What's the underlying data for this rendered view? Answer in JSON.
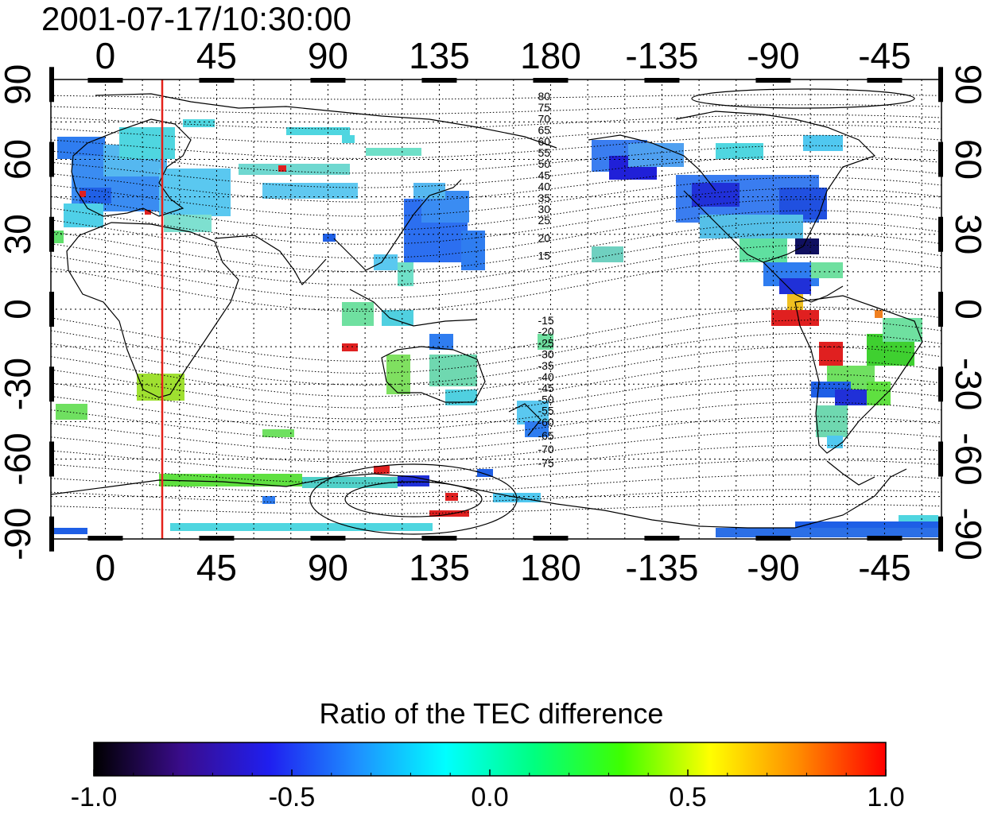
{
  "timestamp": "2001-07-17/10:30:00",
  "map": {
    "lon_ticks": [
      "0",
      "45",
      "90",
      "135",
      "180",
      "-135",
      "-90",
      "-45"
    ],
    "lat_ticks": [
      "90",
      "60",
      "30",
      "0",
      "-30",
      "-60",
      "-90"
    ],
    "lon_range": [
      -22,
      338
    ],
    "lat_range": [
      -92,
      92
    ],
    "grid": true,
    "marker_line_lon": 23,
    "marker_line_color": "#e4221b",
    "contour_labels_north": [
      "80",
      "75",
      "70",
      "65",
      "60",
      "55",
      "50",
      "45",
      "40",
      "35",
      "30",
      "25",
      "20",
      "15"
    ],
    "contour_labels_south": [
      "-15",
      "-20",
      "-25",
      "-30",
      "-35",
      "-40",
      "-45",
      "-50",
      "-55",
      "-60",
      "-65",
      "-70",
      "-75"
    ]
  },
  "colorbar": {
    "title": "Ratio of the TEC difference",
    "ticks": [
      "-1.0",
      "-0.5",
      "0.0",
      "0.5",
      "1.0"
    ],
    "range": [
      -1.0,
      1.0
    ],
    "colors": [
      "#000000",
      "#3a0c8c",
      "#1f1ff0",
      "#1e90ff",
      "#00ffff",
      "#00ff80",
      "#3fff00",
      "#ffff00",
      "#ff8c00",
      "#ff0000"
    ]
  }
}
